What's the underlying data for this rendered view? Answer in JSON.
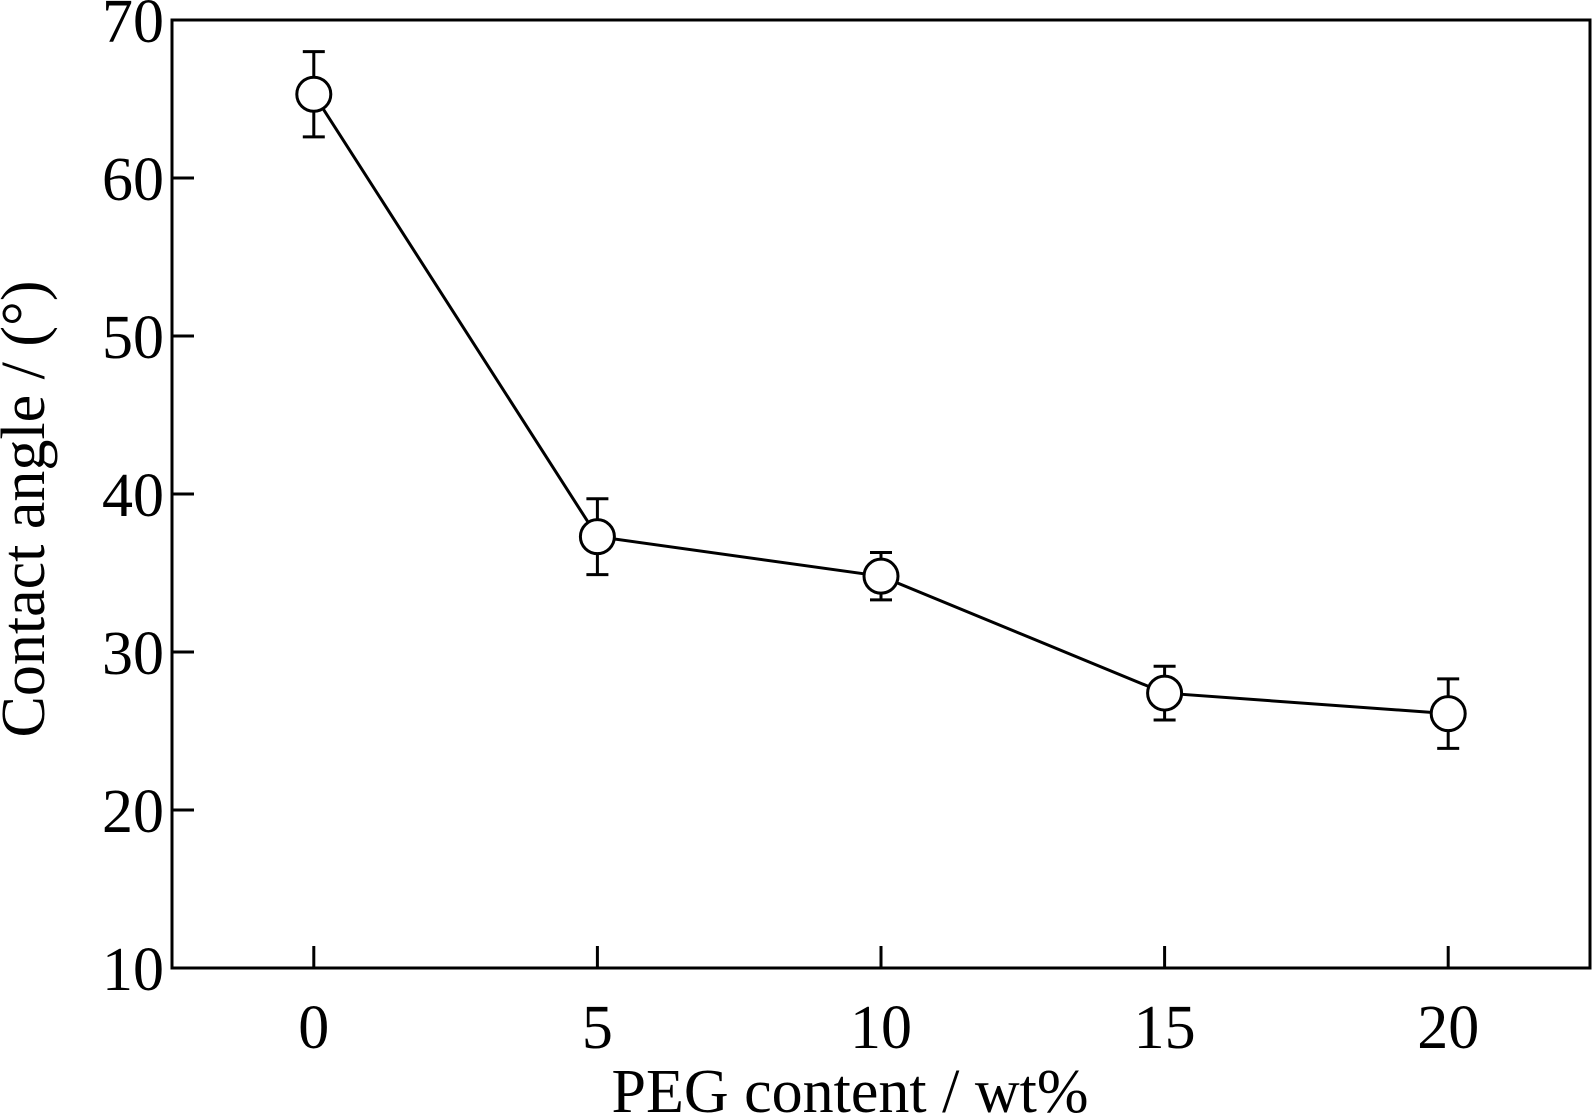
{
  "chart_data": {
    "type": "line",
    "title": "",
    "xlabel": "PEG content / wt%",
    "ylabel": "Contact angle / (°)",
    "xlim": [
      -2.5,
      22.5
    ],
    "ylim": [
      10,
      70
    ],
    "xticks": [
      0,
      5,
      10,
      15,
      20
    ],
    "yticks": [
      10,
      20,
      30,
      40,
      50,
      60,
      70
    ],
    "grid": false,
    "legend": "none",
    "marker": "open-circle",
    "line_color": "#000000",
    "series": [
      {
        "x": [
          0,
          5,
          10,
          15,
          20
        ],
        "values": [
          65.3,
          37.3,
          34.8,
          27.4,
          26.1
        ],
        "error": [
          2.7,
          2.4,
          1.5,
          1.7,
          2.2
        ]
      }
    ]
  }
}
